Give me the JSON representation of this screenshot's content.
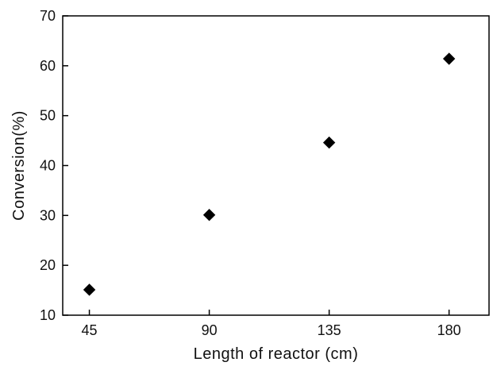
{
  "chart_data": {
    "type": "scatter",
    "title": "",
    "xlabel": "Length of reactor (cm)",
    "ylabel": "Conversion(%)",
    "x_ticks": [
      "45",
      "90",
      "135",
      "180"
    ],
    "y_ticks": [
      "10",
      "20",
      "30",
      "40",
      "50",
      "60",
      "70"
    ],
    "xlim": [
      35,
      195
    ],
    "ylim": [
      10,
      70
    ],
    "grid": false,
    "legend": "none",
    "marker": "diamond",
    "marker_color": "#000000",
    "series": [
      {
        "x": [
          45,
          90,
          135,
          180
        ],
        "y": [
          15.1,
          30.1,
          44.6,
          61.4
        ]
      }
    ]
  }
}
